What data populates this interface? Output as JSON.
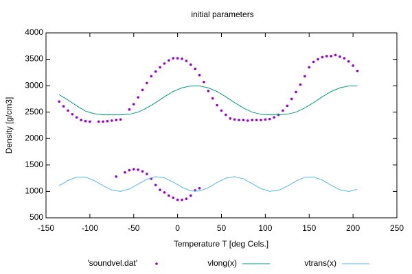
{
  "chart_data": {
    "type": "line",
    "title": "initial parameters",
    "xlabel": "Temperature T  [deg Cels.]",
    "ylabel": "Density [g/cm3]",
    "xlim": [
      -150,
      250
    ],
    "xticks": [
      -150,
      -100,
      -50,
      0,
      50,
      100,
      150,
      200,
      250
    ],
    "ylim": [
      500,
      4000
    ],
    "yticks": [
      500,
      1000,
      1500,
      2000,
      2500,
      3000,
      3500,
      4000
    ],
    "grid": false,
    "legend": "bottom",
    "series": [
      {
        "name": "'soundvel.dat'",
        "type": "scatter",
        "color": "#9400d3",
        "x": [
          -135,
          -130,
          -125,
          -120,
          -115,
          -110,
          -105,
          -100,
          -90,
          -85,
          -80,
          -75,
          -70,
          -65,
          -55,
          -50,
          -45,
          -40,
          -35,
          -30,
          -25,
          -20,
          -15,
          -10,
          -5,
          0,
          5,
          10,
          15,
          20,
          25,
          30,
          35,
          40,
          45,
          50,
          55,
          60,
          65,
          70,
          75,
          80,
          85,
          90,
          95,
          100,
          105,
          110,
          115,
          120,
          125,
          130,
          135,
          140,
          145,
          150,
          155,
          160,
          165,
          170,
          175,
          180,
          185,
          190,
          195,
          200,
          205,
          -70,
          -60,
          -55,
          -50,
          -45,
          -40,
          -35,
          -30,
          -25,
          -20,
          -15,
          -10,
          -5,
          0,
          5,
          10,
          15,
          20,
          25
        ],
        "values": [
          2700,
          2610,
          2530,
          2460,
          2400,
          2350,
          2330,
          2320,
          2320,
          2320,
          2330,
          2340,
          2350,
          2360,
          2550,
          2650,
          2780,
          2920,
          3050,
          3180,
          3270,
          3350,
          3420,
          3480,
          3520,
          3520,
          3510,
          3470,
          3400,
          3320,
          3200,
          3070,
          2900,
          2760,
          2630,
          2530,
          2450,
          2380,
          2360,
          2350,
          2350,
          2340,
          2350,
          2350,
          2350,
          2360,
          2370,
          2400,
          2450,
          2530,
          2620,
          2750,
          2880,
          3020,
          3180,
          3350,
          3450,
          3500,
          3540,
          3560,
          3560,
          3580,
          3550,
          3520,
          3460,
          3380,
          3280,
          1280,
          1360,
          1400,
          1420,
          1410,
          1380,
          1330,
          1240,
          1120,
          1030,
          980,
          920,
          880,
          840,
          840,
          860,
          920,
          1020,
          1060
        ]
      },
      {
        "name": "vlong(x)",
        "type": "line",
        "color": "#009e73",
        "x": [
          -135,
          -125,
          -115,
          -105,
          -95,
          -85,
          -75,
          -65,
          -55,
          -45,
          -35,
          -25,
          -15,
          -5,
          5,
          15,
          25,
          35,
          45,
          55,
          65,
          75,
          85,
          95,
          105,
          115,
          125,
          135,
          145,
          155,
          165,
          175,
          185,
          195,
          205
        ],
        "values": [
          2830,
          2730,
          2620,
          2520,
          2470,
          2450,
          2450,
          2450,
          2460,
          2500,
          2580,
          2680,
          2790,
          2890,
          2960,
          2995,
          2995,
          2960,
          2890,
          2790,
          2680,
          2580,
          2500,
          2460,
          2450,
          2450,
          2460,
          2500,
          2580,
          2680,
          2790,
          2890,
          2960,
          2995,
          2995
        ]
      },
      {
        "name": "vtrans(x)",
        "type": "line",
        "color": "#56b4e9",
        "x": [
          -135,
          -125,
          -115,
          -105,
          -95,
          -85,
          -75,
          -65,
          -55,
          -45,
          -35,
          -25,
          -15,
          -5,
          5,
          15,
          25,
          35,
          45,
          55,
          65,
          75,
          85,
          95,
          105,
          115,
          125,
          135,
          145,
          155,
          165,
          175,
          185,
          195,
          205
        ],
        "values": [
          1108,
          1206,
          1271,
          1271,
          1206,
          1108,
          1026,
          1001,
          1046,
          1138,
          1231,
          1279,
          1257,
          1177,
          1079,
          1011,
          1007,
          1070,
          1168,
          1251,
          1280,
          1238,
          1148,
          1053,
          1002,
          1020,
          1098,
          1196,
          1267,
          1274,
          1214,
          1117,
          1031,
          1000,
          1039
        ]
      }
    ]
  }
}
